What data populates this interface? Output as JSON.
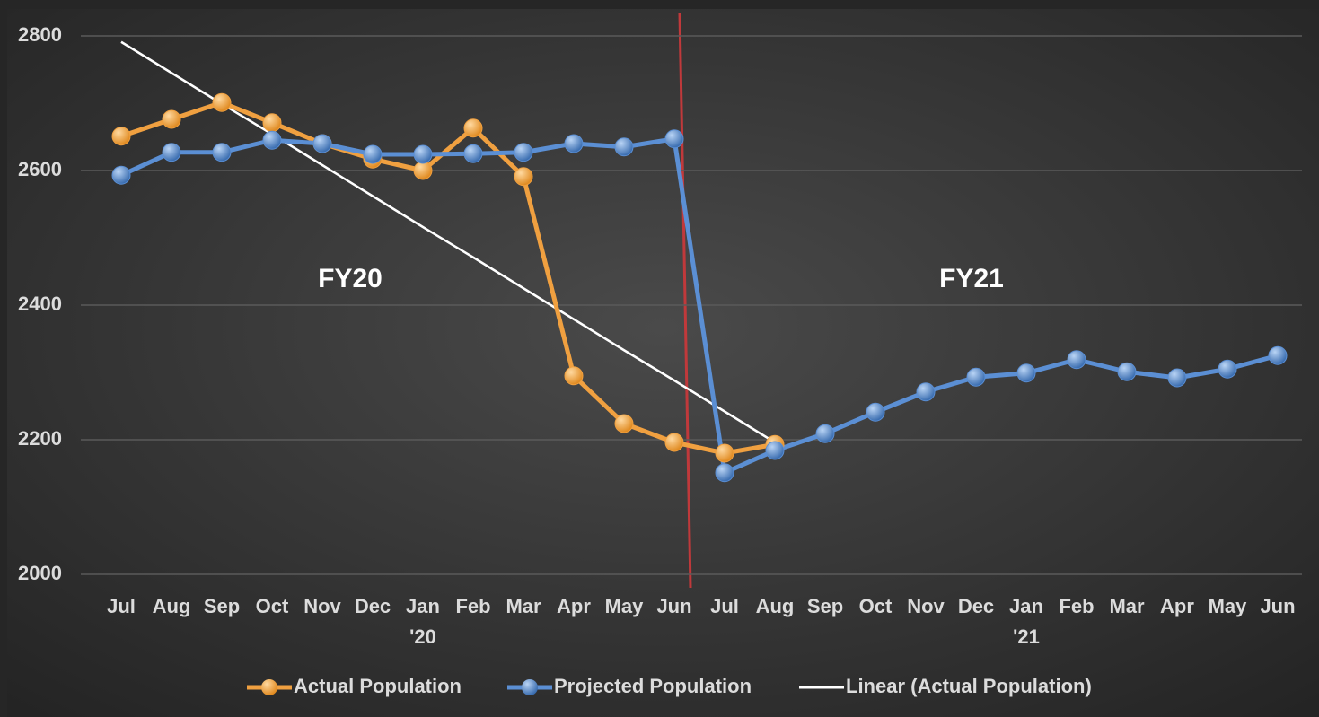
{
  "chart_data": {
    "type": "line",
    "categories": [
      "Jul",
      "Aug",
      "Sep",
      "Oct",
      "Nov",
      "Dec",
      "Jan",
      "Feb",
      "Mar",
      "Apr",
      "May",
      "Jun",
      "Jul",
      "Aug",
      "Sep",
      "Oct",
      "Nov",
      "Dec",
      "Jan",
      "Feb",
      "Mar",
      "Apr",
      "May",
      "Jun"
    ],
    "category_sublabels": [
      null,
      null,
      null,
      null,
      null,
      null,
      "'20",
      null,
      null,
      null,
      null,
      null,
      null,
      null,
      null,
      null,
      null,
      null,
      "'21",
      null,
      null,
      null,
      null,
      null
    ],
    "series": [
      {
        "name": "Actual Population",
        "color": "#f0a040",
        "marker": true,
        "values": [
          2651,
          2676,
          2701,
          2671,
          2640,
          2617,
          2600,
          2663,
          2591,
          2295,
          2224,
          2196,
          2180,
          2193,
          null,
          null,
          null,
          null,
          null,
          null,
          null,
          null,
          null,
          null
        ]
      },
      {
        "name": "Projected Population",
        "color": "#5b8fd4",
        "marker": true,
        "values": [
          2593,
          2627,
          2627,
          2645,
          2640,
          2624,
          2624,
          2625,
          2627,
          2640,
          2635,
          2647,
          2151,
          2184,
          2209,
          2241,
          2271,
          2293,
          2299,
          2319,
          2301,
          2292,
          2305,
          2325
        ]
      },
      {
        "name": "Linear (Actual Population)",
        "color": "#ffffff",
        "marker": false,
        "values": [
          2791,
          2745,
          2699,
          2654,
          2608,
          2562,
          2516,
          2471,
          2425,
          2379,
          2333,
          2288,
          2242,
          2196,
          null,
          null,
          null,
          null,
          null,
          null,
          null,
          null,
          null,
          null
        ]
      }
    ],
    "annotations": [
      "FY20",
      "FY21"
    ],
    "ylim": [
      2000,
      2800
    ],
    "yticks": [
      2000,
      2200,
      2400,
      2600,
      2800
    ],
    "grid": true,
    "legend": "bottom"
  }
}
